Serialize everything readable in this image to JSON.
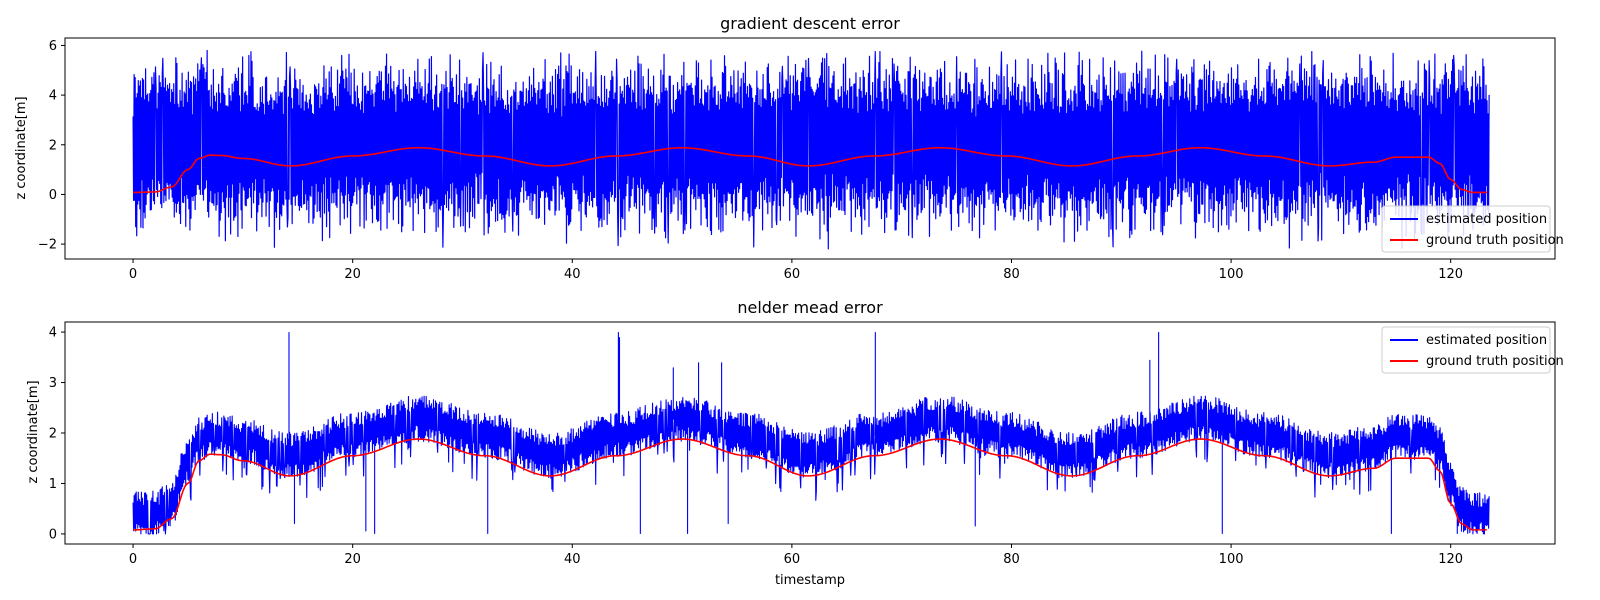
{
  "colors": {
    "estimated": "#0000ff",
    "ground_truth": "#ff0000",
    "axes": "#000000",
    "legend_border": "#cccccc"
  },
  "chart_data": [
    {
      "type": "line",
      "title": "gradient descent error",
      "xlabel": "",
      "ylabel": "z coordinate[m]",
      "xlim": [
        -6.2,
        129.5
      ],
      "ylim": [
        -2.6,
        6.3
      ],
      "xticks": [
        0,
        20,
        40,
        60,
        80,
        100,
        120
      ],
      "yticks": [
        -2,
        0,
        2,
        4,
        6
      ],
      "ytick_labels": [
        "−2",
        "0",
        "2",
        "4",
        "6"
      ],
      "grid": false,
      "legend_position": "lower-right",
      "noise_amplitude_range": [
        2.0,
        5.8
      ],
      "noise_band_center": 2.0,
      "series": [
        {
          "name": "estimated position",
          "color": "#0000ff",
          "style": "dense noisy band",
          "x_range": [
            0,
            123.5
          ],
          "approx_min": -2.2,
          "approx_max": 5.8
        },
        {
          "name": "ground truth position",
          "color": "#ff0000",
          "x": [
            0,
            2,
            3.5,
            5,
            6,
            7,
            8,
            10,
            14.3,
            20,
            26,
            32,
            38,
            44,
            50,
            56,
            61.5,
            67.5,
            73.5,
            79.5,
            85.5,
            91.5,
            97.2,
            103,
            109,
            113,
            115,
            118,
            119,
            120,
            121,
            122,
            123.3
          ],
          "y": [
            0.08,
            0.1,
            0.3,
            1.0,
            1.45,
            1.58,
            1.57,
            1.45,
            1.15,
            1.55,
            1.88,
            1.55,
            1.15,
            1.55,
            1.88,
            1.55,
            1.15,
            1.55,
            1.88,
            1.55,
            1.15,
            1.55,
            1.88,
            1.55,
            1.15,
            1.3,
            1.5,
            1.5,
            1.25,
            0.6,
            0.2,
            0.08,
            0.08
          ]
        }
      ]
    },
    {
      "type": "line",
      "title": "nelder mead error",
      "xlabel": "timestamp",
      "ylabel": "z coordinate[m]",
      "xlim": [
        -6.2,
        129.5
      ],
      "ylim": [
        -0.2,
        4.2
      ],
      "xticks": [
        0,
        20,
        40,
        60,
        80,
        100,
        120
      ],
      "yticks": [
        0,
        1,
        2,
        3,
        4
      ],
      "ytick_labels": [
        "0",
        "1",
        "2",
        "3",
        "4"
      ],
      "grid": false,
      "legend_position": "upper-right",
      "noise_offset": 0.55,
      "noise_amplitude": 0.35,
      "series": [
        {
          "name": "estimated position",
          "color": "#0000ff",
          "style": "noisy band above ground truth",
          "spikes_up": [
            [
              14.2,
              4.0
            ],
            [
              44.2,
              4.0
            ],
            [
              44.3,
              3.9
            ],
            [
              49.2,
              3.3
            ],
            [
              51.5,
              3.4
            ],
            [
              53.6,
              3.4
            ],
            [
              67.6,
              4.0
            ],
            [
              93.4,
              4.0
            ],
            [
              92.6,
              3.45
            ]
          ],
          "spikes_down": [
            [
              14.7,
              0.2
            ],
            [
              21.2,
              0.05
            ],
            [
              22.0,
              0.0
            ],
            [
              32.3,
              0.0
            ],
            [
              46.2,
              0.0
            ],
            [
              50.5,
              0.0
            ],
            [
              54.2,
              0.2
            ],
            [
              76.7,
              0.15
            ],
            [
              99.2,
              0.0
            ],
            [
              114.6,
              0.0
            ],
            [
              120.6,
              0.0
            ]
          ]
        },
        {
          "name": "ground truth position",
          "color": "#ff0000",
          "x": [
            0,
            2,
            3.5,
            5,
            6,
            7,
            8,
            10,
            14.3,
            20,
            26,
            32,
            38,
            44,
            50,
            56,
            61.5,
            67.5,
            73.5,
            79.5,
            85.5,
            91.5,
            97.2,
            103,
            109,
            113,
            115,
            118,
            119,
            120,
            121,
            122,
            123.3
          ],
          "y": [
            0.08,
            0.1,
            0.3,
            1.0,
            1.45,
            1.58,
            1.57,
            1.45,
            1.15,
            1.55,
            1.88,
            1.55,
            1.15,
            1.55,
            1.88,
            1.55,
            1.15,
            1.55,
            1.88,
            1.55,
            1.15,
            1.55,
            1.88,
            1.55,
            1.15,
            1.3,
            1.5,
            1.5,
            1.25,
            0.6,
            0.2,
            0.08,
            0.08
          ]
        }
      ]
    }
  ]
}
